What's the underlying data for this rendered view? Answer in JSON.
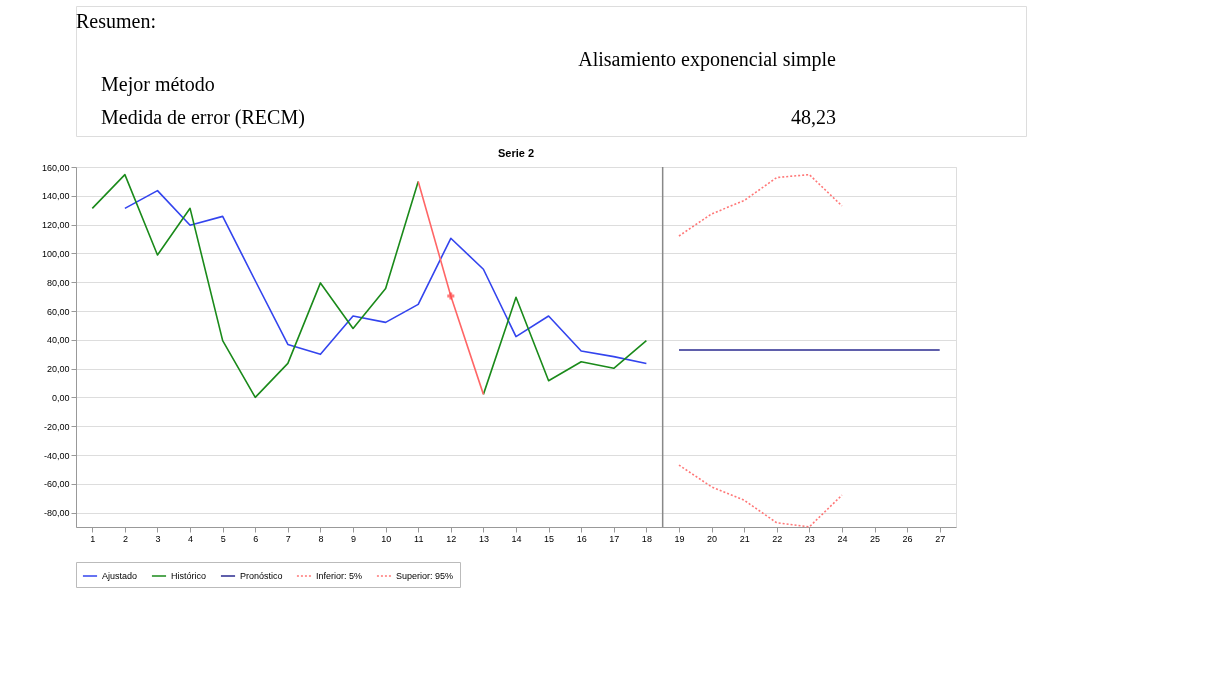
{
  "chart_data": {
    "type": "line",
    "title": "Serie 2",
    "annotations": [
      "Resumen:",
      "Alisamiento exponencial simple",
      "Mejor método",
      "Medida de error (RECM)",
      "48,23"
    ],
    "xlim": [
      0.5,
      27.5
    ],
    "xticks": [
      1,
      2,
      3,
      4,
      5,
      6,
      7,
      8,
      9,
      10,
      11,
      12,
      13,
      14,
      15,
      16,
      17,
      18,
      19,
      20,
      21,
      22,
      23,
      24,
      25,
      26,
      27
    ],
    "ylim": [
      -90,
      160
    ],
    "yticks": [
      {
        "value": -80,
        "label": "-80,00"
      },
      {
        "value": -60,
        "label": "-60,00"
      },
      {
        "value": -40,
        "label": "-40,00"
      },
      {
        "value": -20,
        "label": "-20,00"
      },
      {
        "value": 0,
        "label": "0,00"
      },
      {
        "value": 20,
        "label": "20,00"
      },
      {
        "value": 40,
        "label": "40,00"
      },
      {
        "value": 60,
        "label": "60,00"
      },
      {
        "value": 80,
        "label": "80,00"
      },
      {
        "value": 100,
        "label": "100,00"
      },
      {
        "value": 120,
        "label": "120,00"
      },
      {
        "value": 140,
        "label": "140,00"
      },
      {
        "value": 160,
        "label": "160,00"
      }
    ],
    "grid": "y",
    "legend": "bottom",
    "line_style": "solid",
    "ref_lines": [
      {
        "axis": "x",
        "value": 18.5,
        "color": "#888888"
      }
    ],
    "series": [
      {
        "name": "Ajustado",
        "color": "#3344ee",
        "x": [
          2,
          3,
          4,
          5,
          6,
          7,
          8,
          9,
          10,
          11,
          12,
          13,
          14,
          15,
          16,
          17,
          18
        ],
        "values": [
          131.3,
          143.6,
          119.5,
          125.7,
          81,
          36.8,
          29.9,
          56.5,
          52.1,
          64.6,
          110.5,
          89.0,
          42.2,
          56.5,
          32.2,
          28.3,
          23.6
        ]
      },
      {
        "name": "Histórico",
        "color": "#1a8a1a",
        "x": [
          1,
          2,
          3,
          4,
          5,
          6,
          7,
          8,
          9,
          10,
          11,
          12,
          13,
          14,
          15,
          16,
          17,
          18
        ],
        "values": [
          131.3,
          154.7,
          98.9,
          131.3,
          39.4,
          0,
          23.6,
          79.5,
          47.9,
          75.7,
          149.9,
          null,
          2.1,
          69.5,
          11.6,
          24.8,
          20.2,
          39.4
        ]
      },
      {
        "name": "Pronóstico",
        "color": "#2a2a8f",
        "x": [
          19,
          20,
          21,
          22,
          23,
          24,
          25,
          26,
          27
        ],
        "values": [
          32.9,
          32.9,
          32.9,
          32.9,
          32.9,
          32.9,
          32.9,
          32.9,
          32.9
        ]
      },
      {
        "name": "Inferior: 5%",
        "color": "#ff7777",
        "line_style": "dotted",
        "x": [
          19,
          20,
          21,
          22,
          23,
          24
        ],
        "values": [
          -47.0,
          -62.1,
          -71.4,
          -87.1,
          -89.9,
          -67.9
        ]
      },
      {
        "name": "Superior: 95%",
        "color": "#ff7777",
        "line_style": "dotted",
        "x": [
          19,
          20,
          21,
          22,
          23,
          24
        ],
        "values": [
          112.1,
          127.4,
          136.7,
          152.7,
          154.7,
          133.0
        ]
      },
      {
        "color": "#ff6666",
        "x": [
          11,
          12,
          13
        ],
        "values": [
          149.9,
          70.4,
          2.1
        ]
      },
      {
        "type": "scatter",
        "marker": "cross",
        "color": "#ff4444",
        "x": [
          12
        ],
        "values": [
          70.4
        ]
      }
    ]
  }
}
